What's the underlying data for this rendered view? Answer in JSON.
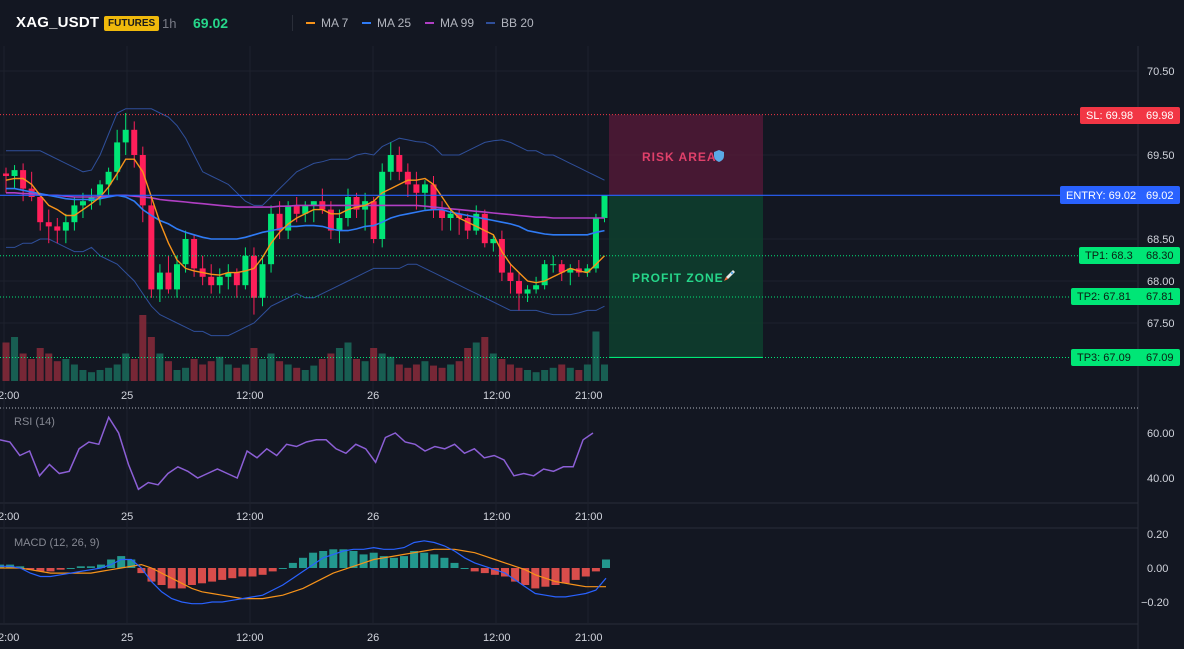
{
  "header": {
    "symbol": "XAG_USDT",
    "badge": "FUTURES",
    "timeframe": "1h",
    "last_price": "69.02",
    "legend": [
      {
        "label": "MA 7",
        "color": "#f7931a"
      },
      {
        "label": "MA 25",
        "color": "#2f7bf5"
      },
      {
        "label": "MA 99",
        "color": "#b03fc4"
      },
      {
        "label": "BB 20",
        "color": "#2f4f9a"
      }
    ]
  },
  "price_axis": {
    "ticks": [
      "70.50",
      "69.50",
      "68.50",
      "68.00",
      "67.50"
    ],
    "tick_values": [
      70.5,
      69.5,
      68.5,
      68.0,
      67.5
    ]
  },
  "levels": {
    "sl": {
      "tag": "SL: 69.98",
      "value_text": "69.98",
      "value": 69.98,
      "color": "#f23645"
    },
    "entry": {
      "tag": "ENTRY: 69.02",
      "value_text": "69.02",
      "value": 69.02,
      "color": "#2962ff"
    },
    "tp1": {
      "tag": "TP1: 68.3",
      "value_text": "68.30",
      "value": 68.3,
      "color": "#00e676"
    },
    "tp2": {
      "tag": "TP2: 67.81",
      "value_text": "67.81",
      "value": 67.81,
      "color": "#00e676"
    },
    "tp3": {
      "tag": "TP3: 67.09",
      "value_text": "67.09",
      "value": 67.09,
      "color": "#00e676"
    }
  },
  "zones": {
    "risk": {
      "label": "RISK AREA",
      "icon": "shield-icon"
    },
    "profit": {
      "label": "PROFIT ZONE",
      "icon": "rocket-icon"
    }
  },
  "time_axis": {
    "labels": [
      "2:00",
      "25",
      "12:00",
      "26",
      "12:00",
      "21:00"
    ]
  },
  "rsi": {
    "title": "RSI (14)",
    "ticks": [
      "60.00",
      "40.00"
    ],
    "tick_values": [
      60,
      40
    ],
    "color": "#8c5fd6",
    "values": [
      57,
      56,
      50,
      52,
      41,
      46,
      42,
      43,
      53,
      56,
      55,
      67,
      60,
      46,
      35,
      38,
      37,
      42,
      45,
      43,
      40,
      42,
      44,
      42,
      40,
      52,
      49,
      53,
      50,
      55,
      54,
      56,
      57,
      57,
      53,
      51,
      55,
      53,
      47,
      58,
      60,
      56,
      55,
      52,
      54,
      53,
      55,
      51,
      53,
      49,
      50,
      48,
      41,
      42,
      41,
      44,
      43,
      45,
      45,
      57,
      60
    ]
  },
  "macd": {
    "title": "MACD (12, 26, 9)",
    "ticks": [
      "0.20",
      "0.00",
      "−0.20"
    ],
    "tick_values": [
      0.2,
      0.0,
      -0.2
    ],
    "macd_color": "#2962ff",
    "signal_color": "#f7931a",
    "hist_pos": "#26a69a",
    "hist_neg": "#ef5350",
    "hist": [
      0.02,
      0.02,
      0.01,
      -0.01,
      -0.02,
      -0.02,
      -0.01,
      0.0,
      0.01,
      0.01,
      0.02,
      0.05,
      0.07,
      0.05,
      -0.03,
      -0.08,
      -0.1,
      -0.12,
      -0.12,
      -0.1,
      -0.09,
      -0.08,
      -0.07,
      -0.06,
      -0.05,
      -0.05,
      -0.04,
      -0.02,
      0.0,
      0.03,
      0.06,
      0.09,
      0.1,
      0.11,
      0.11,
      0.1,
      0.08,
      0.09,
      0.07,
      0.06,
      0.07,
      0.1,
      0.09,
      0.08,
      0.06,
      0.03,
      0.0,
      -0.02,
      -0.03,
      -0.04,
      -0.05,
      -0.08,
      -0.1,
      -0.12,
      -0.11,
      -0.1,
      -0.09,
      -0.07,
      -0.05,
      -0.02,
      0.05
    ],
    "macd_line": [
      0.01,
      0.01,
      0.0,
      -0.03,
      -0.05,
      -0.05,
      -0.04,
      -0.03,
      -0.02,
      -0.01,
      0.0,
      0.02,
      0.05,
      0.05,
      0.0,
      -0.08,
      -0.14,
      -0.18,
      -0.2,
      -0.21,
      -0.21,
      -0.2,
      -0.2,
      -0.19,
      -0.18,
      -0.17,
      -0.16,
      -0.13,
      -0.1,
      -0.06,
      -0.02,
      0.02,
      0.06,
      0.08,
      0.1,
      0.11,
      0.11,
      0.12,
      0.11,
      0.11,
      0.12,
      0.15,
      0.16,
      0.15,
      0.13,
      0.1,
      0.06,
      0.03,
      0.01,
      -0.01,
      -0.03,
      -0.07,
      -0.11,
      -0.15,
      -0.16,
      -0.17,
      -0.17,
      -0.16,
      -0.15,
      -0.13,
      -0.06
    ],
    "signal_line": [
      0.0,
      0.0,
      0.0,
      -0.01,
      -0.02,
      -0.03,
      -0.03,
      -0.03,
      -0.03,
      -0.03,
      -0.02,
      -0.01,
      0.0,
      0.01,
      0.02,
      0.0,
      -0.03,
      -0.06,
      -0.09,
      -0.12,
      -0.14,
      -0.15,
      -0.16,
      -0.17,
      -0.18,
      -0.18,
      -0.18,
      -0.17,
      -0.16,
      -0.14,
      -0.12,
      -0.09,
      -0.06,
      -0.03,
      -0.01,
      0.01,
      0.03,
      0.05,
      0.06,
      0.07,
      0.08,
      0.09,
      0.1,
      0.11,
      0.11,
      0.11,
      0.1,
      0.09,
      0.07,
      0.05,
      0.03,
      0.01,
      -0.01,
      -0.04,
      -0.06,
      -0.08,
      -0.09,
      -0.1,
      -0.11,
      -0.11,
      -0.11
    ]
  },
  "candles": {
    "up_color": "#00e676",
    "down_color": "#ff1f5a",
    "ohlc": [
      [
        69.28,
        69.35,
        69.05,
        69.25
      ],
      [
        69.25,
        69.38,
        69.1,
        69.32
      ],
      [
        69.32,
        69.4,
        68.95,
        69.1
      ],
      [
        69.1,
        69.3,
        68.95,
        69.0
      ],
      [
        69.0,
        69.05,
        68.6,
        68.7
      ],
      [
        68.7,
        68.85,
        68.45,
        68.65
      ],
      [
        68.65,
        68.75,
        68.45,
        68.6
      ],
      [
        68.6,
        68.8,
        68.45,
        68.7
      ],
      [
        68.7,
        69.0,
        68.6,
        68.9
      ],
      [
        68.9,
        69.05,
        68.75,
        68.95
      ],
      [
        68.95,
        69.1,
        68.85,
        69.0
      ],
      [
        69.0,
        69.2,
        68.9,
        69.15
      ],
      [
        69.15,
        69.35,
        69.0,
        69.3
      ],
      [
        69.3,
        69.8,
        69.2,
        69.65
      ],
      [
        69.65,
        70.0,
        69.5,
        69.8
      ],
      [
        69.8,
        69.9,
        69.35,
        69.5
      ],
      [
        69.5,
        69.6,
        68.7,
        68.9
      ],
      [
        68.9,
        69.0,
        67.8,
        67.9
      ],
      [
        67.9,
        68.2,
        67.75,
        68.1
      ],
      [
        68.1,
        68.3,
        67.85,
        67.9
      ],
      [
        67.9,
        68.3,
        67.8,
        68.2
      ],
      [
        68.2,
        68.6,
        68.1,
        68.5
      ],
      [
        68.5,
        68.55,
        68.05,
        68.15
      ],
      [
        68.15,
        68.3,
        67.95,
        68.05
      ],
      [
        68.05,
        68.2,
        67.85,
        67.95
      ],
      [
        67.95,
        68.15,
        67.85,
        68.05
      ],
      [
        68.05,
        68.2,
        67.9,
        68.1
      ],
      [
        68.1,
        68.15,
        67.8,
        67.95
      ],
      [
        67.95,
        68.4,
        67.9,
        68.3
      ],
      [
        68.3,
        68.4,
        67.6,
        67.8
      ],
      [
        67.8,
        68.3,
        67.7,
        68.2
      ],
      [
        68.2,
        68.9,
        68.1,
        68.8
      ],
      [
        68.8,
        68.95,
        68.5,
        68.6
      ],
      [
        68.6,
        68.95,
        68.5,
        68.9
      ],
      [
        68.9,
        69.0,
        68.7,
        68.8
      ],
      [
        68.8,
        68.95,
        68.7,
        68.9
      ],
      [
        68.9,
        68.95,
        68.7,
        68.95
      ],
      [
        68.95,
        69.1,
        68.8,
        68.85
      ],
      [
        68.85,
        68.95,
        68.5,
        68.6
      ],
      [
        68.6,
        68.85,
        68.45,
        68.75
      ],
      [
        68.75,
        69.1,
        68.65,
        69.0
      ],
      [
        69.0,
        69.05,
        68.75,
        68.85
      ],
      [
        68.85,
        69.05,
        68.6,
        68.95
      ],
      [
        68.95,
        69.0,
        68.45,
        68.5
      ],
      [
        68.5,
        69.4,
        68.4,
        69.3
      ],
      [
        69.3,
        69.65,
        69.2,
        69.5
      ],
      [
        69.5,
        69.6,
        69.2,
        69.3
      ],
      [
        69.3,
        69.4,
        69.0,
        69.15
      ],
      [
        69.15,
        69.3,
        68.85,
        69.05
      ],
      [
        69.05,
        69.2,
        68.85,
        69.15
      ],
      [
        69.15,
        69.25,
        68.75,
        68.85
      ],
      [
        68.85,
        68.95,
        68.6,
        68.75
      ],
      [
        68.75,
        68.85,
        68.6,
        68.8
      ],
      [
        68.8,
        68.85,
        68.55,
        68.75
      ],
      [
        68.75,
        68.8,
        68.5,
        68.6
      ],
      [
        68.6,
        68.9,
        68.55,
        68.8
      ],
      [
        68.8,
        68.85,
        68.4,
        68.45
      ],
      [
        68.45,
        68.55,
        68.35,
        68.5
      ],
      [
        68.5,
        68.6,
        68.0,
        68.1
      ],
      [
        68.1,
        68.2,
        67.85,
        68.0
      ],
      [
        68.0,
        68.1,
        67.65,
        67.85
      ],
      [
        67.85,
        67.95,
        67.75,
        67.9
      ],
      [
        67.9,
        68.05,
        67.85,
        67.95
      ],
      [
        67.95,
        68.25,
        67.9,
        68.2
      ],
      [
        68.2,
        68.3,
        68.1,
        68.2
      ],
      [
        68.2,
        68.25,
        68.0,
        68.1
      ],
      [
        68.1,
        68.2,
        67.95,
        68.15
      ],
      [
        68.15,
        68.25,
        68.05,
        68.1
      ],
      [
        68.1,
        68.2,
        68.05,
        68.15
      ],
      [
        68.15,
        68.8,
        68.1,
        68.75
      ],
      [
        68.75,
        69.0,
        68.7,
        69.02
      ]
    ],
    "volumes": [
      0.35,
      0.4,
      0.25,
      0.2,
      0.3,
      0.25,
      0.18,
      0.2,
      0.15,
      0.1,
      0.08,
      0.1,
      0.12,
      0.15,
      0.25,
      0.2,
      0.6,
      0.4,
      0.25,
      0.18,
      0.1,
      0.12,
      0.2,
      0.15,
      0.18,
      0.22,
      0.15,
      0.12,
      0.15,
      0.3,
      0.2,
      0.25,
      0.18,
      0.15,
      0.12,
      0.1,
      0.14,
      0.2,
      0.25,
      0.3,
      0.35,
      0.2,
      0.18,
      0.3,
      0.25,
      0.22,
      0.15,
      0.12,
      0.15,
      0.18,
      0.14,
      0.12,
      0.15,
      0.18,
      0.3,
      0.35,
      0.4,
      0.25,
      0.2,
      0.15,
      0.12,
      0.1,
      0.08,
      0.1,
      0.12,
      0.15,
      0.12,
      0.1,
      0.15,
      0.45,
      0.15
    ]
  },
  "ma": {
    "ma7": [
      69.2,
      69.22,
      69.22,
      69.15,
      69.02,
      68.9,
      68.85,
      68.78,
      68.78,
      68.85,
      68.92,
      69.0,
      69.12,
      69.28,
      69.45,
      69.45,
      69.3,
      69.0,
      68.7,
      68.45,
      68.25,
      68.15,
      68.12,
      68.1,
      68.08,
      68.07,
      68.1,
      68.1,
      68.12,
      68.15,
      68.28,
      68.45,
      68.58,
      68.68,
      68.75,
      68.8,
      68.85,
      68.85,
      68.8,
      68.8,
      68.85,
      68.88,
      68.9,
      68.95,
      69.05,
      69.1,
      69.15,
      69.2,
      69.2,
      69.22,
      69.15,
      69.0,
      68.85,
      68.75,
      68.7,
      68.65,
      68.6,
      68.55,
      68.35,
      68.2,
      68.1,
      68.0,
      67.98,
      68.0,
      68.05,
      68.1,
      68.15,
      68.12,
      68.1,
      68.2,
      68.3
    ],
    "ma25": [
      69.1,
      69.1,
      69.08,
      69.06,
      69.04,
      69.02,
      69.0,
      68.98,
      68.97,
      68.97,
      68.97,
      68.98,
      69.0,
      69.02,
      69.0,
      68.95,
      68.85,
      68.78,
      68.72,
      68.68,
      68.62,
      68.58,
      68.55,
      68.52,
      68.5,
      68.5,
      68.5,
      68.5,
      68.52,
      68.55,
      68.58,
      68.6,
      68.62,
      68.65,
      68.65,
      68.66,
      68.66,
      68.65,
      68.62,
      68.6,
      68.6,
      68.62,
      68.65,
      68.66,
      68.7,
      68.75,
      68.78,
      68.8,
      68.82,
      68.84,
      68.85,
      68.85,
      68.82,
      68.8,
      68.78,
      68.76,
      68.74,
      68.72,
      68.7,
      68.68,
      68.65,
      68.6,
      68.58,
      68.56,
      68.55,
      68.55,
      68.55,
      68.55,
      68.55,
      68.58,
      68.6
    ],
    "ma99": [
      69.05,
      69.05,
      69.04,
      69.04,
      69.03,
      69.02,
      69.02,
      69.01,
      69.0,
      69.0,
      69.0,
      69.0,
      69.01,
      69.02,
      69.02,
      69.01,
      69.0,
      68.99,
      68.97,
      68.96,
      68.95,
      68.94,
      68.93,
      68.92,
      68.91,
      68.9,
      68.89,
      68.88,
      68.88,
      68.88,
      68.88,
      68.88,
      68.89,
      68.89,
      68.9,
      68.9,
      68.9,
      68.9,
      68.9,
      68.9,
      68.9,
      68.9,
      68.9,
      68.9,
      68.9,
      68.9,
      68.9,
      68.9,
      68.9,
      68.89,
      68.88,
      68.87,
      68.86,
      68.85,
      68.84,
      68.83,
      68.82,
      68.81,
      68.8,
      68.79,
      68.78,
      68.77,
      68.76,
      68.76,
      68.75,
      68.75,
      68.75,
      68.75,
      68.75,
      68.75,
      68.75
    ],
    "bb_upper": [
      69.55,
      69.55,
      69.55,
      69.55,
      69.55,
      69.5,
      69.45,
      69.4,
      69.35,
      69.3,
      69.32,
      69.5,
      69.75,
      70.0,
      70.05,
      70.05,
      70.05,
      70.05,
      70.0,
      69.95,
      69.85,
      69.7,
      69.5,
      69.3,
      69.25,
      69.2,
      69.15,
      69.05,
      68.95,
      68.9,
      68.9,
      69.0,
      69.1,
      69.2,
      69.3,
      69.35,
      69.4,
      69.42,
      69.45,
      69.45,
      69.45,
      69.5,
      69.52,
      69.5,
      69.6,
      69.65,
      69.7,
      69.68,
      69.66,
      69.65,
      69.6,
      69.5,
      69.5,
      69.5,
      69.55,
      69.6,
      69.65,
      69.67,
      69.68,
      69.65,
      69.6,
      69.55,
      69.55,
      69.5,
      69.5,
      69.45,
      69.4,
      69.35,
      69.3,
      69.25,
      69.2
    ],
    "bb_lower": [
      68.4,
      68.4,
      68.45,
      68.45,
      68.5,
      68.5,
      68.45,
      68.4,
      68.35,
      68.35,
      68.4,
      68.3,
      68.25,
      68.2,
      68.1,
      68.0,
      67.85,
      67.7,
      67.6,
      67.55,
      67.5,
      67.45,
      67.4,
      67.4,
      67.35,
      67.35,
      67.35,
      67.4,
      67.45,
      67.5,
      67.6,
      67.7,
      67.75,
      67.8,
      67.85,
      67.8,
      67.8,
      67.85,
      67.9,
      67.95,
      68.0,
      68.05,
      68.1,
      68.15,
      68.15,
      68.15,
      68.15,
      68.2,
      68.2,
      68.15,
      68.1,
      68.05,
      68.0,
      67.95,
      67.9,
      67.85,
      67.8,
      67.75,
      67.7,
      67.65,
      67.65,
      67.65,
      67.65,
      67.62,
      67.6,
      67.6,
      67.6,
      67.62,
      67.65,
      67.65,
      67.7
    ]
  }
}
